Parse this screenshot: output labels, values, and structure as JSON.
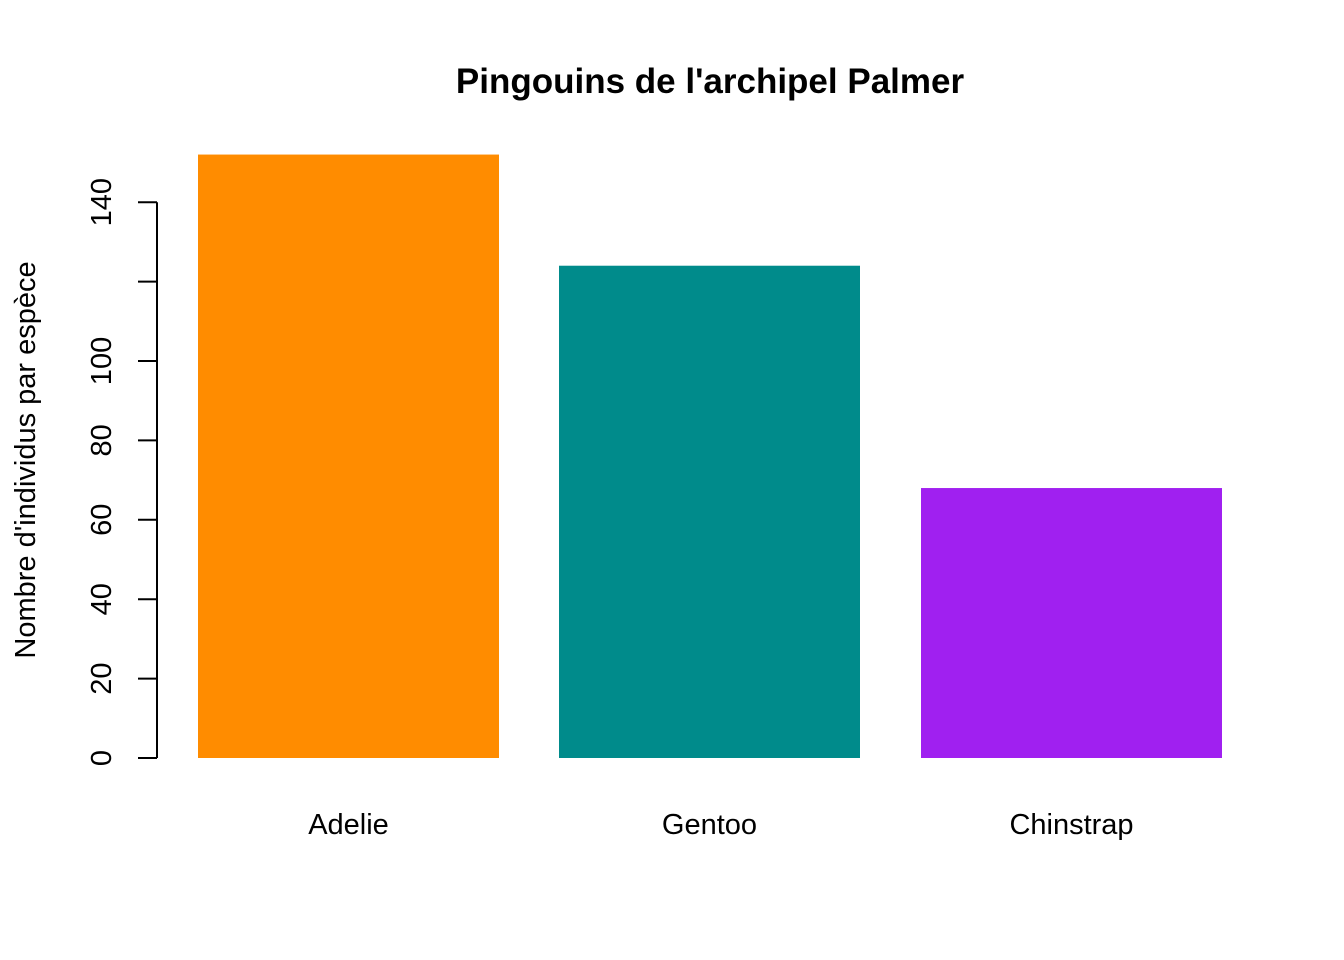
{
  "chart_data": {
    "type": "bar",
    "title": "Pingouins de l'archipel Palmer",
    "xlabel": "",
    "ylabel": "Nombre d'individus par espèce",
    "categories": [
      "Adelie",
      "Gentoo",
      "Chinstrap"
    ],
    "values": [
      152,
      124,
      68
    ],
    "colors": [
      "#FF8C00",
      "#008B8B",
      "#A020F0"
    ],
    "ylim": [
      0,
      152
    ],
    "y_ticks": [
      0,
      20,
      40,
      60,
      80,
      100,
      120,
      140
    ],
    "y_tick_labels": [
      "0",
      "20",
      "40",
      "60",
      "80",
      "100",
      "",
      "140"
    ],
    "grid": false,
    "legend": "none"
  }
}
